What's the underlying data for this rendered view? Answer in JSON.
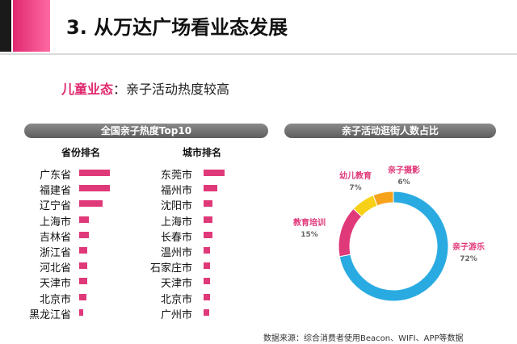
{
  "header": {
    "title": "3. 从万达广场看业态发展"
  },
  "subtitle": {
    "highlight": "儿童业态",
    "sep": "：",
    "text": "亲子活动热度较高"
  },
  "left_panel": {
    "title": "全国亲子热度Top10",
    "province_header": "省份排名",
    "city_header": "城市排名"
  },
  "right_panel": {
    "title": "亲子活动逛街人数占比"
  },
  "source": "数据来源：综合消费者使用Beacon、WIFI、APP等数据",
  "colors": {
    "accent": "#e0296f",
    "bar": "#e0397a"
  },
  "chart_data": [
    {
      "type": "bar",
      "orientation": "horizontal",
      "title": "省份排名",
      "categories": [
        "广东省",
        "福建省",
        "辽宁省",
        "上海市",
        "吉林省",
        "浙江省",
        "河北省",
        "天津市",
        "北京市",
        "黑龙江省"
      ],
      "values": [
        10,
        10,
        7.5,
        3.2,
        3.2,
        2.6,
        2.6,
        2.6,
        2.4,
        1.4
      ]
    },
    {
      "type": "bar",
      "orientation": "horizontal",
      "title": "城市排名",
      "categories": [
        "东莞市",
        "福州市",
        "沈阳市",
        "上海市",
        "长春市",
        "温州市",
        "石家庄市",
        "天津市",
        "北京市",
        "广州市"
      ],
      "values": [
        10,
        6.6,
        4.4,
        4.4,
        4.4,
        3.2,
        3.2,
        3.2,
        3.2,
        2.6
      ]
    },
    {
      "type": "pie",
      "title": "亲子活动逛街人数占比",
      "slices": [
        {
          "label": "亲子游乐",
          "value": 72,
          "pct": "72%",
          "color": "#29abe2"
        },
        {
          "label": "教育培训",
          "value": 15,
          "pct": "15%",
          "color": "#e0397a"
        },
        {
          "label": "幼儿教育",
          "value": 7,
          "pct": "7%",
          "color": "#f7d117"
        },
        {
          "label": "亲子摄影",
          "value": 6,
          "pct": "6%",
          "color": "#f7a21b"
        }
      ]
    }
  ]
}
